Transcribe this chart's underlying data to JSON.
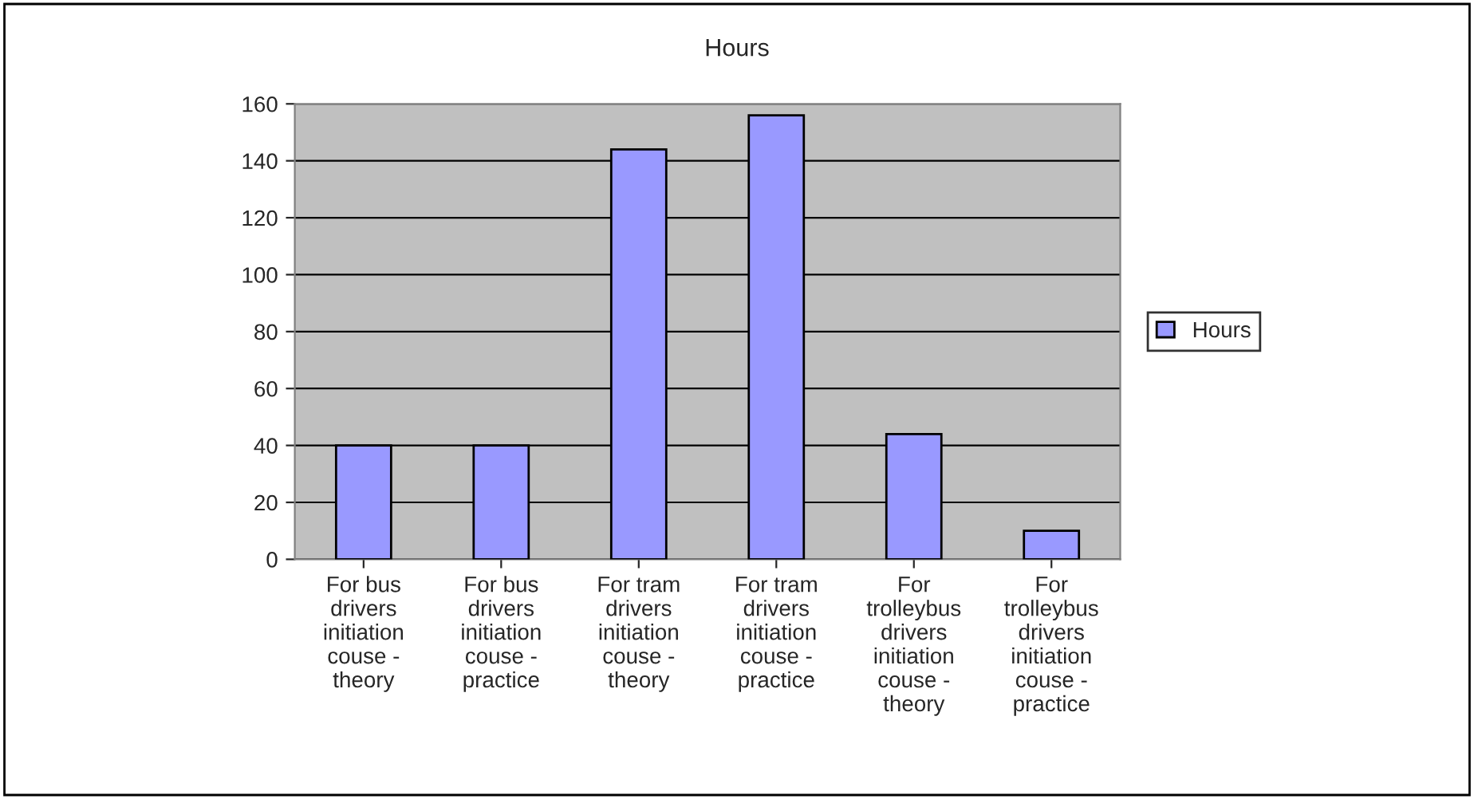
{
  "chart_data": {
    "type": "bar",
    "title": "Hours",
    "categories": [
      "For bus\ndrivers\ninitiation\ncouse -\ntheory",
      "For bus\ndrivers\ninitiation\ncouse -\npractice",
      "For tram\ndrivers\ninitiation\ncouse -\ntheory",
      "For tram\ndrivers\ninitiation\ncouse -\npractice",
      "For\ntrolleybus\ndrivers\ninitiation\ncouse -\ntheory",
      "For\ntrolleybus\ndrivers\ninitiation\ncouse -\npractice"
    ],
    "series": [
      {
        "name": "Hours",
        "color": "#9999ff",
        "values": [
          40,
          40,
          144,
          156,
          44,
          10
        ]
      }
    ],
    "ylim": [
      0,
      160
    ],
    "yticks": [
      0,
      20,
      40,
      60,
      80,
      100,
      120,
      140,
      160
    ],
    "grid": "y",
    "legend": "right"
  }
}
